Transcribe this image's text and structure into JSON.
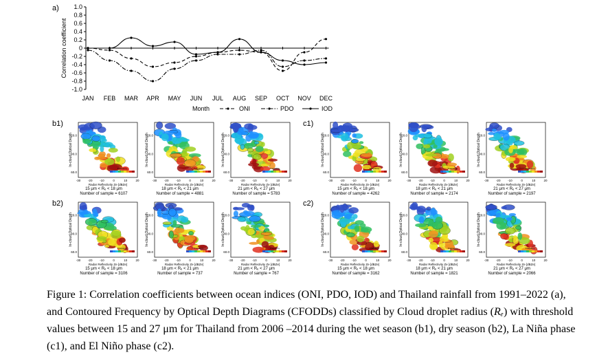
{
  "panel_a": {
    "label": "a)",
    "chart_data": {
      "type": "line",
      "x": [
        "JAN",
        "FEB",
        "MAR",
        "APR",
        "MAY",
        "JUN",
        "JUL",
        "AUG",
        "SEP",
        "OCT",
        "NOV",
        "DEC"
      ],
      "xlabel": "Month",
      "ylabel": "Correlation coefficient",
      "ylim": [
        -1.0,
        1.0
      ],
      "yticks": [
        "1.0",
        "0.8",
        "0.6",
        "0.4",
        "0.2",
        "0",
        "-0.2",
        "-0.4",
        "-0.6",
        "-0.8",
        "-1.0"
      ],
      "series": [
        {
          "name": "ONI",
          "style": "dashed",
          "values": [
            0.0,
            -0.05,
            -0.25,
            -0.45,
            -0.35,
            -0.2,
            -0.1,
            -0.05,
            -0.1,
            -0.55,
            -0.1,
            0.22
          ]
        },
        {
          "name": "PDO",
          "style": "dashdot",
          "values": [
            -0.05,
            -0.3,
            -0.55,
            -0.8,
            -0.5,
            -0.3,
            -0.15,
            -0.15,
            -0.05,
            -0.45,
            -0.3,
            -0.25
          ]
        },
        {
          "name": "IOD",
          "style": "solid",
          "values": [
            0.0,
            0.0,
            0.25,
            0.05,
            0.15,
            -0.15,
            -0.1,
            0.22,
            -0.1,
            -0.3,
            -0.4,
            -0.35
          ]
        }
      ]
    }
  },
  "cfodd": {
    "b1": {
      "label": "b1)",
      "panels": [
        {
          "range": "15 μm < Rₑ < 18 μm",
          "count": "Number of sample = 6107"
        },
        {
          "range": "18 μm < Rₑ < 21 μm",
          "count": "Number of sample = 4881"
        },
        {
          "range": "21 μm < Rₑ < 27 μm",
          "count": "Number of sample = 5783"
        }
      ]
    },
    "c1": {
      "label": "c1)",
      "panels": [
        {
          "range": "15 μm < Rₑ < 18 μm",
          "count": "Number of sample = 4262"
        },
        {
          "range": "18 μm < Rₑ < 21 μm",
          "count": "Number of sample = 2174"
        },
        {
          "range": "21 μm < Rₑ < 27 μm",
          "count": "Number of sample = 2197"
        }
      ]
    },
    "b2": {
      "label": "b2)",
      "panels": [
        {
          "range": "15 μm < Rₑ < 18 μm",
          "count": "Number of sample = 3106"
        },
        {
          "range": "18 μm < Rₑ < 21 μm",
          "count": "Number of sample = 737"
        },
        {
          "range": "21 μm < Rₑ < 27 μm",
          "count": "Number of sample = 767"
        }
      ]
    },
    "c2": {
      "label": "c2)",
      "panels": [
        {
          "range": "15 μm < Rₑ < 18 μm",
          "count": "Number of sample = 3162"
        },
        {
          "range": "18 μm < Rₑ < 21 μm",
          "count": "Number of sample = 1821"
        },
        {
          "range": "21 μm < Rₑ < 27 μm",
          "count": "Number of sample = 2066"
        }
      ]
    },
    "y_axis_label": "In-cloud Optical Depth",
    "x_axis_label": "Radar Reflectivity Ze [dBZe]",
    "y_ticks": [
      "20.0",
      "40.0",
      "60.0"
    ],
    "x_ticks": [
      "-30",
      "-20",
      "-10",
      "0",
      "10",
      "20"
    ],
    "colorbar_label": "Frequency"
  },
  "caption": {
    "part1": "Figure 1: Correlation coefficients between ocean indices (ONI, PDO, IOD) and Thailand rainfall from 1991–2022 (a), and Contoured Frequency by Optical Depth Diagrams (CFODDs) classified by Cloud droplet radius (",
    "symbol": "Rₑ",
    "part2": ") with threshold values between 15 and 27 μm for Thailand from 2006 –2014 during the wet season (b1), dry season (b2), La Niña phase (c1), and El Niño phase (c2)."
  }
}
